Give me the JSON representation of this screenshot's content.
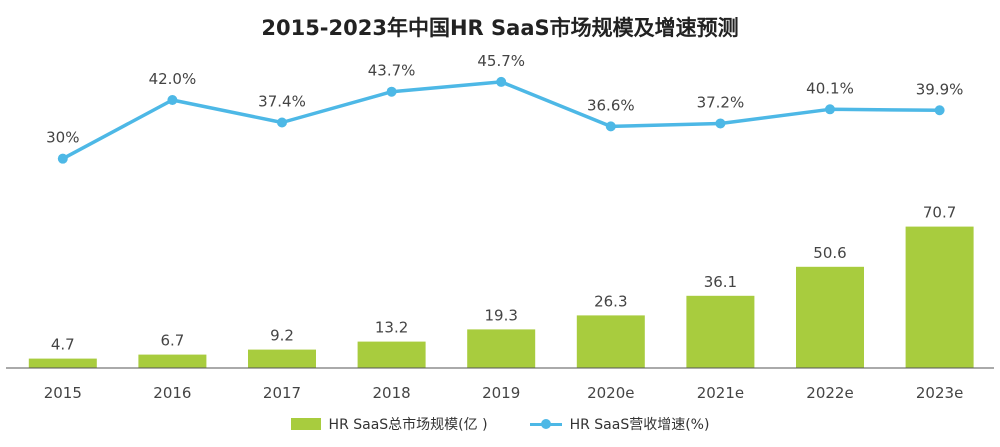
{
  "title": "2015-2023年中国HR SaaS市场规模及增速预测",
  "colors": {
    "bar": "#A8CC3E",
    "line": "#4DB8E6",
    "axis": "#555555",
    "label": "#444444"
  },
  "chart_data": {
    "type": "bar",
    "title": "2015-2023年中国HR SaaS市场规模及增速预测",
    "categories": [
      "2015",
      "2016",
      "2017",
      "2018",
      "2019",
      "2020e",
      "2021e",
      "2022e",
      "2023e"
    ],
    "series": [
      {
        "name": "HR SaaS总市场规模(亿 )",
        "type": "bar",
        "values": [
          4.7,
          6.7,
          9.2,
          13.2,
          19.3,
          26.3,
          36.1,
          50.6,
          70.7
        ],
        "labels": [
          "4.7",
          "6.7",
          "9.2",
          "13.2",
          "19.3",
          "26.3",
          "36.1",
          "50.6",
          "70.7"
        ]
      },
      {
        "name": "HR SaaS营收增速(%)",
        "type": "line",
        "values": [
          30,
          42.0,
          37.4,
          43.7,
          45.7,
          36.6,
          37.2,
          40.1,
          39.9
        ],
        "labels": [
          "30%",
          "42.0%",
          "37.4%",
          "43.7%",
          "45.7%",
          "36.6%",
          "37.2%",
          "40.1%",
          "39.9%"
        ]
      }
    ],
    "legend_position": "bottom",
    "grid": false
  }
}
